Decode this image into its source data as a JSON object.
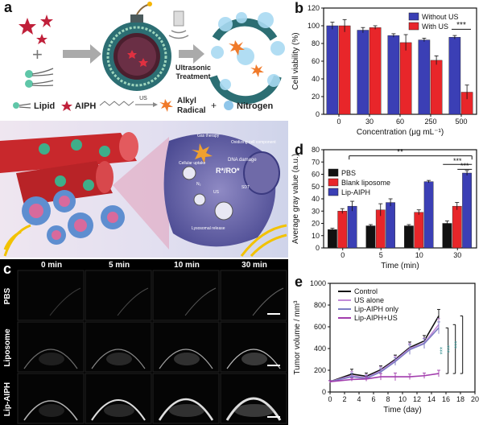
{
  "panel_labels": {
    "a": "a",
    "b": "b",
    "c": "c",
    "d": "d",
    "e": "e"
  },
  "panel_a": {
    "us_label_line1": "Ultrasonic",
    "us_label_line2": "Treatment",
    "legend": {
      "lipid": "Lipid",
      "aiph": "AIPH",
      "us": "US",
      "alkyl_line1": "Alkyl",
      "alkyl_line2": "Radical",
      "nitrogen": "Nitrogen"
    },
    "cell_labels": {
      "gas_therapy": "Gas therapy",
      "oxidizing": "Oxidizing cell component",
      "dna_damage": "DNA damage",
      "radicals": "R*/RO*",
      "sdt": "SDT",
      "cellular_uptake": "Cellular uptake",
      "lysosomal": "Lysosomal release",
      "us_small": "US",
      "n2": "N₂"
    }
  },
  "chart_data": [
    {
      "panel": "b",
      "type": "bar",
      "categories": [
        "0",
        "30",
        "60",
        "250",
        "500"
      ],
      "series": [
        {
          "name": "Without US",
          "color": "#3b3fb5",
          "values": [
            100,
            95,
            89,
            84,
            87
          ],
          "err": [
            4,
            3,
            2,
            2,
            2
          ]
        },
        {
          "name": "With US",
          "color": "#e8262a",
          "values": [
            100,
            98,
            81,
            61,
            25
          ],
          "err": [
            7,
            2,
            9,
            5,
            8
          ]
        }
      ],
      "xlabel": "Concentration (μg mL⁻¹)",
      "ylabel": "Cell viability (%)",
      "ylim": [
        0,
        120
      ],
      "yticks": [
        0,
        20,
        40,
        60,
        80,
        100,
        120
      ],
      "annotation": "***",
      "legend_position": "top-right"
    },
    {
      "panel": "d",
      "type": "bar",
      "categories": [
        "0",
        "5",
        "10",
        "30"
      ],
      "series": [
        {
          "name": "PBS",
          "color": "#111111",
          "values": [
            15,
            18,
            18,
            20
          ],
          "err": [
            1,
            1,
            1,
            2
          ]
        },
        {
          "name": "Blank liposome",
          "color": "#e8262a",
          "values": [
            30,
            31,
            29,
            34
          ],
          "err": [
            2,
            5,
            2,
            3
          ]
        },
        {
          "name": "Lip-AIPH",
          "color": "#3b3fb5",
          "values": [
            34,
            37,
            54,
            61
          ],
          "err": [
            4,
            3,
            1,
            2
          ]
        }
      ],
      "xlabel": "Time (min)",
      "ylabel": "Average gray value (a.u.)",
      "ylim": [
        0,
        80
      ],
      "yticks": [
        0,
        10,
        20,
        30,
        40,
        50,
        60,
        70,
        80
      ],
      "annotations": [
        "**",
        "***",
        "***"
      ],
      "legend_position": "top-left"
    },
    {
      "panel": "e",
      "type": "line",
      "x": [
        0,
        3,
        5,
        7,
        9,
        11,
        13,
        15
      ],
      "series": [
        {
          "name": "Control",
          "color": "#111111",
          "values": [
            95,
            165,
            145,
            205,
            300,
            410,
            470,
            700
          ],
          "err": [
            10,
            45,
            30,
            35,
            40,
            50,
            50,
            60
          ]
        },
        {
          "name": "US alone",
          "color": "#c28ad8",
          "values": [
            95,
            150,
            130,
            195,
            290,
            400,
            450,
            620
          ],
          "err": [
            10,
            40,
            30,
            35,
            40,
            45,
            45,
            55
          ]
        },
        {
          "name": "Lip-AIPH only",
          "color": "#7d7ec4",
          "values": [
            95,
            140,
            125,
            185,
            280,
            390,
            445,
            590
          ],
          "err": [
            10,
            35,
            25,
            30,
            35,
            45,
            45,
            55
          ]
        },
        {
          "name": "Lip-AIPH+US",
          "color": "#a23dad",
          "values": [
            95,
            115,
            120,
            140,
            140,
            140,
            150,
            170
          ],
          "err": [
            10,
            15,
            20,
            30,
            35,
            25,
            25,
            30
          ]
        }
      ],
      "xlabel": "Time (day)",
      "ylabel": "Tumor volume / mm³",
      "xlim": [
        0,
        20
      ],
      "xticks": [
        0,
        2,
        4,
        6,
        8,
        10,
        12,
        14,
        16,
        18,
        20
      ],
      "ylim": [
        0,
        1000
      ],
      "yticks": [
        0,
        200,
        400,
        600,
        800,
        1000
      ],
      "annotations": [
        "***",
        "***",
        "***"
      ],
      "legend_position": "top-left"
    }
  ],
  "panel_c": {
    "columns": [
      "0 min",
      "5 min",
      "10 min",
      "30 min"
    ],
    "rows": [
      "PBS",
      "Liposome",
      "Lip-AIPH"
    ]
  }
}
